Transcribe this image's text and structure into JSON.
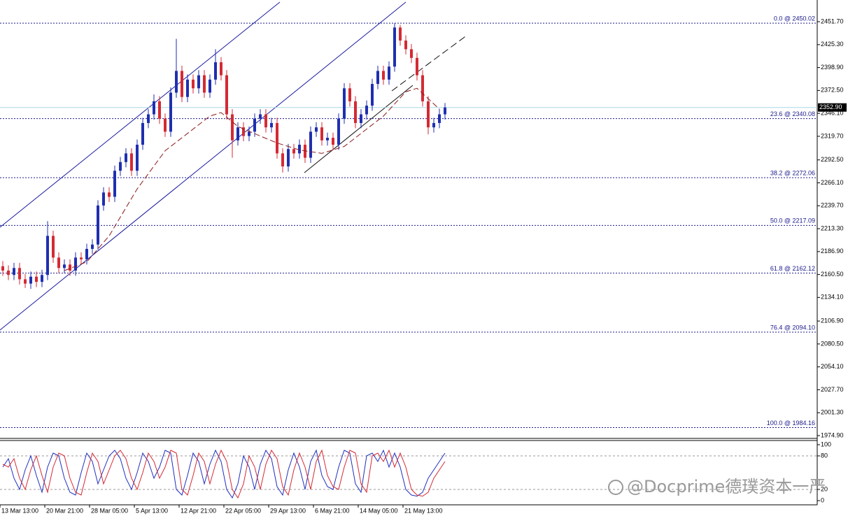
{
  "chart_data": [
    {
      "type": "candlestick",
      "open": [
        2170,
        2165,
        2160,
        2168,
        2155,
        2150,
        2158,
        2152,
        2160,
        2205,
        2180,
        2168,
        2172,
        2165,
        2180,
        2178,
        2190,
        2195,
        2240,
        2255,
        2250,
        2280,
        2290,
        2300,
        2280,
        2310,
        2335,
        2345,
        2360,
        2340,
        2325,
        2370,
        2395,
        2365,
        2385,
        2375,
        2390,
        2370,
        2385,
        2405,
        2390,
        2345,
        2315,
        2330,
        2320,
        2325,
        2340,
        2345,
        2330,
        2335,
        2300,
        2285,
        2305,
        2300,
        2310,
        2295,
        2325,
        2330,
        2315,
        2318,
        2310,
        2340,
        2375,
        2360,
        2335,
        2345,
        2355,
        2380,
        2395,
        2385,
        2400,
        2445,
        2430,
        2420,
        2410,
        2390,
        2360,
        2330,
        2335,
        2345
      ],
      "high": [
        2176,
        2171,
        2174,
        2174,
        2161,
        2164,
        2164,
        2166,
        2222,
        2211,
        2186,
        2178,
        2178,
        2186,
        2186,
        2196,
        2201,
        2246,
        2261,
        2261,
        2286,
        2296,
        2306,
        2306,
        2316,
        2341,
        2351,
        2368,
        2366,
        2346,
        2376,
        2432,
        2401,
        2391,
        2391,
        2396,
        2396,
        2391,
        2420,
        2411,
        2396,
        2351,
        2336,
        2336,
        2331,
        2346,
        2351,
        2351,
        2341,
        2341,
        2306,
        2311,
        2311,
        2316,
        2316,
        2331,
        2336,
        2336,
        2324,
        2324,
        2346,
        2381,
        2381,
        2366,
        2351,
        2361,
        2386,
        2401,
        2401,
        2406,
        2450,
        2448,
        2436,
        2426,
        2416,
        2396,
        2366,
        2341,
        2351,
        2358
      ],
      "low": [
        2159,
        2154,
        2154,
        2149,
        2145,
        2144,
        2146,
        2146,
        2154,
        2174,
        2162,
        2162,
        2159,
        2159,
        2172,
        2172,
        2184,
        2189,
        2234,
        2244,
        2244,
        2274,
        2284,
        2274,
        2274,
        2304,
        2329,
        2339,
        2334,
        2319,
        2319,
        2364,
        2359,
        2359,
        2369,
        2369,
        2364,
        2364,
        2379,
        2384,
        2339,
        2295,
        2309,
        2314,
        2314,
        2319,
        2334,
        2324,
        2324,
        2294,
        2278,
        2279,
        2294,
        2294,
        2289,
        2289,
        2319,
        2309,
        2309,
        2304,
        2304,
        2334,
        2354,
        2329,
        2329,
        2339,
        2349,
        2374,
        2379,
        2379,
        2394,
        2424,
        2414,
        2404,
        2384,
        2354,
        2322,
        2324,
        2329,
        2339
      ],
      "close": [
        2165,
        2160,
        2168,
        2155,
        2150,
        2158,
        2152,
        2160,
        2205,
        2180,
        2168,
        2172,
        2165,
        2180,
        2178,
        2190,
        2195,
        2240,
        2255,
        2250,
        2280,
        2290,
        2300,
        2280,
        2310,
        2335,
        2345,
        2360,
        2340,
        2325,
        2370,
        2395,
        2365,
        2385,
        2375,
        2390,
        2370,
        2385,
        2405,
        2390,
        2345,
        2315,
        2330,
        2320,
        2325,
        2340,
        2345,
        2330,
        2335,
        2300,
        2285,
        2305,
        2300,
        2310,
        2295,
        2325,
        2330,
        2315,
        2318,
        2310,
        2340,
        2375,
        2360,
        2335,
        2345,
        2355,
        2380,
        2395,
        2385,
        2400,
        2445,
        2430,
        2420,
        2410,
        2390,
        2360,
        2330,
        2335,
        2345,
        2352.9
      ],
      "up_color": "#1f2fb0",
      "down_color": "#d42a34",
      "ylim": [
        1971.7,
        2476.7
      ],
      "yticks": [
        {
          "value": 2451.7,
          "label": "2451.70"
        },
        {
          "value": 2425.3,
          "label": "2425.30"
        },
        {
          "value": 2398.9,
          "label": "2398.90"
        },
        {
          "value": 2372.5,
          "label": "2372.50"
        },
        {
          "value": 2346.1,
          "label": "2346.10"
        },
        {
          "value": 2319.7,
          "label": "2319.70"
        },
        {
          "value": 2292.5,
          "label": "2292.50"
        },
        {
          "value": 2266.1,
          "label": "2266.10"
        },
        {
          "value": 2239.7,
          "label": "2239.70"
        },
        {
          "value": 2213.3,
          "label": "2213.30"
        },
        {
          "value": 2186.9,
          "label": "2186.90"
        },
        {
          "value": 2160.5,
          "label": "2160.50"
        },
        {
          "value": 2134.1,
          "label": "2134.10"
        },
        {
          "value": 2106.9,
          "label": "2106.90"
        },
        {
          "value": 2080.5,
          "label": "2080.50"
        },
        {
          "value": 2054.1,
          "label": "2054.10"
        },
        {
          "value": 2027.7,
          "label": "2027.70"
        },
        {
          "value": 2001.3,
          "label": "2001.30"
        },
        {
          "value": 1974.9,
          "label": "1974.90"
        }
      ],
      "xticks": [
        {
          "value": 0,
          "label": "13 Mar 13:00"
        },
        {
          "value": 8,
          "label": "20 Mar 21:00"
        },
        {
          "value": 16,
          "label": "28 Mar 05:00"
        },
        {
          "value": 24,
          "label": "5 Apr 13:00"
        },
        {
          "value": 32,
          "label": "12 Apr 21:00"
        },
        {
          "value": 40,
          "label": "22 Apr 05:00"
        },
        {
          "value": 48,
          "label": "29 Apr 13:00"
        },
        {
          "value": 56,
          "label": "6 May 21:00"
        },
        {
          "value": 64,
          "label": "14 May 05:00"
        },
        {
          "value": 72,
          "label": "21 May 13:00"
        }
      ],
      "ma": {
        "color": "#8b1a1a",
        "x": [
          11,
          15,
          19,
          24,
          29,
          33,
          37,
          39,
          42,
          46,
          49,
          53,
          57,
          61,
          64,
          68,
          72,
          74,
          78
        ],
        "values": [
          2165,
          2175,
          2205,
          2259,
          2303,
          2323,
          2343,
          2347,
          2331,
          2320,
          2312,
          2304,
          2300,
          2308,
          2323,
          2343,
          2371,
          2375,
          2351
        ]
      },
      "fib_color": "#1a1a8c",
      "fib_levels": [
        {
          "value": 2450.02,
          "label": "0.0 @ 2450.02"
        },
        {
          "value": 2340.08,
          "label": "23.6 @ 2340.08"
        },
        {
          "value": 2272.06,
          "label": "38.2 @ 2272.06"
        },
        {
          "value": 2217.09,
          "label": "50.0 @ 2217.09"
        },
        {
          "value": 2162.12,
          "label": "61.8 @ 2162.12"
        },
        {
          "value": 2094.1,
          "label": "76.4 @ 2094.10"
        },
        {
          "value": 1984.16,
          "label": "100.0 @ 1984.16"
        }
      ],
      "last_price": {
        "value": 2352.9,
        "label": "2352.90"
      }
    },
    {
      "type": "stochastic",
      "series": [
        {
          "color": "#2030c0",
          "values": [
            60,
            75,
            40,
            20,
            55,
            80,
            45,
            15,
            60,
            85,
            80,
            40,
            15,
            10,
            50,
            85,
            70,
            30,
            55,
            80,
            90,
            75,
            40,
            20,
            50,
            85,
            70,
            40,
            60,
            90,
            85,
            20,
            10,
            45,
            85,
            70,
            30,
            65,
            90,
            70,
            20,
            5,
            30,
            80,
            60,
            20,
            65,
            90,
            75,
            25,
            10,
            55,
            85,
            60,
            20,
            70,
            90,
            45,
            25,
            20,
            60,
            90,
            85,
            30,
            15,
            80,
            85,
            70,
            90,
            60,
            85,
            60,
            20,
            10,
            8,
            15,
            40,
            55,
            70,
            85
          ]
        },
        {
          "color": "#d42a34",
          "values": [
            65,
            60,
            75,
            40,
            20,
            55,
            80,
            45,
            15,
            60,
            85,
            80,
            40,
            15,
            10,
            50,
            85,
            70,
            30,
            55,
            80,
            90,
            75,
            40,
            20,
            50,
            85,
            70,
            40,
            60,
            90,
            85,
            20,
            10,
            45,
            85,
            70,
            30,
            65,
            90,
            70,
            20,
            5,
            30,
            80,
            60,
            20,
            65,
            90,
            75,
            25,
            10,
            55,
            85,
            60,
            20,
            70,
            90,
            45,
            25,
            20,
            60,
            90,
            85,
            30,
            15,
            80,
            85,
            70,
            90,
            60,
            85,
            60,
            20,
            10,
            8,
            15,
            40,
            55,
            70
          ]
        }
      ],
      "ylim": [
        -7.5,
        107.5
      ],
      "yticks": [
        100,
        80,
        20,
        0
      ],
      "levels": [
        80,
        20
      ]
    }
  ],
  "watermark": "@Docprime德璞资本一严"
}
